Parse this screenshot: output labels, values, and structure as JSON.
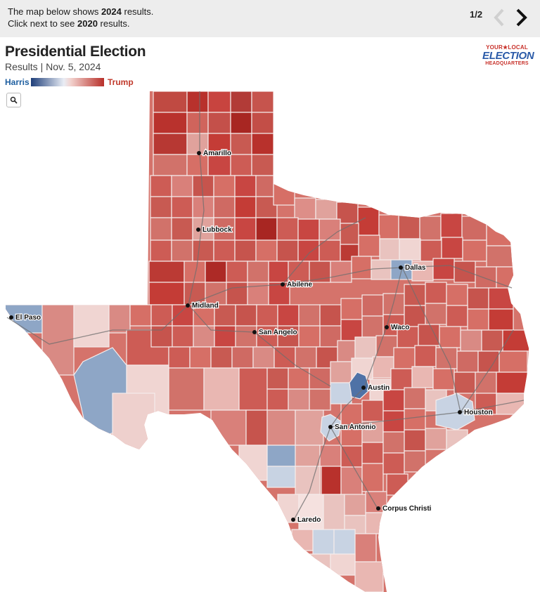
{
  "notice": {
    "line1_prefix": "The map below shows ",
    "line1_year": "2024",
    "line1_suffix": " results.",
    "line2_prefix": "Click next to see ",
    "line2_year": "2020",
    "line2_suffix": " results."
  },
  "pager": {
    "label": "1/2",
    "prev_icon": "chevron-left-icon",
    "next_icon": "chevron-right-icon"
  },
  "header": {
    "title": "Presidential Election",
    "subtitle": "Results | Nov. 5, 2024"
  },
  "logo": {
    "line1": "YOUR★LOCAL",
    "line2": "ELECTION",
    "line3": "HEADQUARTERS"
  },
  "legend": {
    "left_label": "Harris",
    "right_label": "Trump",
    "left_color": "#1f3f7a",
    "right_color": "#b8302a"
  },
  "zoom": {
    "icon": "search-icon"
  },
  "map": {
    "region": "Texas",
    "colors": {
      "strong_trump": "#b8312c",
      "trump": "#cd5c55",
      "lean_trump": "#e0a29c",
      "toss": "#f0d5d2",
      "lean_harris": "#c8d3e3",
      "harris": "#8ea6c6",
      "strong_harris": "#4f72a6"
    },
    "cities": [
      "Amarillo",
      "Lubbock",
      "Dallas",
      "Abilene",
      "Midland",
      "El Paso",
      "Waco",
      "San Angelo",
      "Austin",
      "Houston",
      "San Antonio",
      "Corpus Christi",
      "Laredo"
    ]
  }
}
